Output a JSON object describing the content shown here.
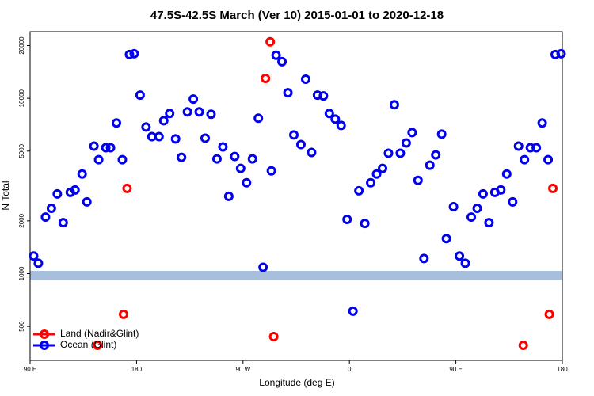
{
  "chart_data": {
    "type": "scatter",
    "title": "47.5S-42.5S March (Ver 10)   2015-01-01 to 2020-12-18",
    "xlabel": "Longitude (deg E)",
    "ylabel": "N Total",
    "xlim": [
      90,
      540
    ],
    "xticks": [
      {
        "value": 90,
        "label": "90 E"
      },
      180,
      {
        "value": 270,
        "label": "90 W"
      },
      {
        "value": 360,
        "label": "0"
      },
      {
        "value": 450,
        "label": "90 E"
      },
      {
        "value": 540,
        "label": "180"
      }
    ],
    "ylim": [
      320,
      24000
    ],
    "ylog": true,
    "yticks": [
      500,
      1000,
      2000,
      5000,
      10000,
      20000
    ],
    "legend": "lower left",
    "series": [
      {
        "name": "Land (Nadir&Glint)",
        "color": "#ff0000",
        "x": [
          147,
          169,
          172,
          289,
          293,
          296,
          507,
          529,
          532
        ],
        "values": [
          390,
          586,
          3064,
          12990,
          21020,
          437,
          390,
          586,
          3064
        ]
      },
      {
        "name": "Ocean (Glint)",
        "color": "#0000ee",
        "x": [
          93,
          97,
          103,
          108,
          113,
          118,
          124,
          128,
          134,
          138,
          144,
          148,
          154,
          158,
          163,
          168,
          174,
          178,
          183,
          188,
          193,
          199,
          203,
          208,
          213,
          218,
          223,
          228,
          233,
          238,
          243,
          248,
          253,
          258,
          263,
          268,
          273,
          278,
          283,
          287,
          294,
          298,
          303,
          308,
          313,
          319,
          323,
          328,
          333,
          338,
          343,
          348,
          353,
          358,
          363,
          368,
          373,
          378,
          383,
          388,
          393,
          398,
          403,
          408,
          413,
          418,
          423,
          428,
          433,
          438,
          442,
          448,
          453,
          458,
          463,
          468,
          473,
          478,
          483,
          488,
          493,
          498,
          503,
          508,
          513,
          518,
          523,
          528,
          534,
          539
        ],
        "values": [
          1260,
          1146,
          2102,
          2359,
          2848,
          1954,
          2909,
          3001,
          3700,
          2566,
          5337,
          4467,
          5228,
          5228,
          7232,
          4467,
          17783,
          17970,
          10430,
          6861,
          6050,
          6050,
          7459,
          8198,
          5866,
          4609,
          8370,
          9900,
          8370,
          5926,
          8111,
          4513,
          5282,
          2760,
          4659,
          3981,
          3298,
          4513,
          7700,
          1087,
          3858,
          17600,
          16180,
          10760,
          6180,
          5448,
          12850,
          4909,
          10430,
          10320,
          8198,
          7617,
          7005,
          2038,
          611,
          2970,
          1933,
          3298,
          3700,
          3981,
          4858,
          9195,
          4858,
          5565,
          6376,
          3402,
          1220,
          4152,
          4757,
          6245,
          1585,
          2409,
          1260,
          1146,
          2102,
          2359,
          2848,
          1954,
          2909,
          3001,
          3700,
          2566,
          5337,
          4467,
          5228,
          5228,
          7232,
          4467,
          17783,
          17970
        ]
      }
    ]
  }
}
